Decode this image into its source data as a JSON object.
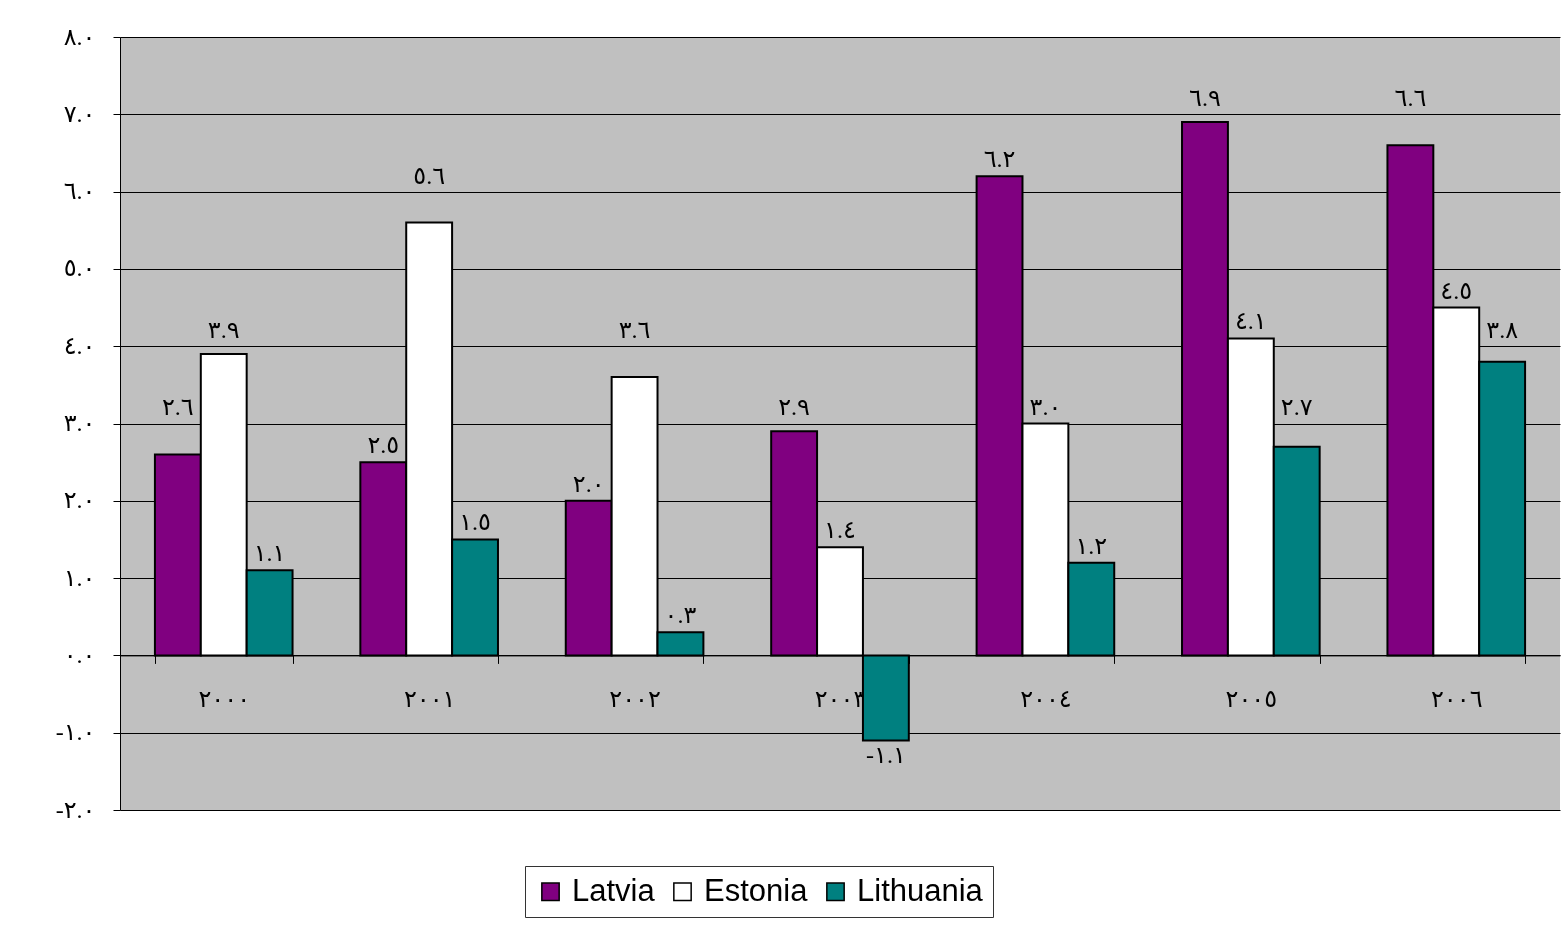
{
  "chart_data": {
    "type": "bar",
    "categories": [
      "٢٠٠٠",
      "٢٠٠١",
      "٢٠٠٢",
      "٢٠٠٣",
      "٢٠٠٤",
      "٢٠٠٥",
      "٢٠٠٦"
    ],
    "series": [
      {
        "name": "Latvia",
        "color": "#800080",
        "values": [
          2.6,
          2.5,
          2.0,
          2.9,
          6.2,
          6.9,
          6.6
        ],
        "value_labels": [
          "٢.٦",
          "٢.٥",
          "٢.٠",
          "٢.٩",
          "٦.٢",
          "٦.٩",
          "٦.٦"
        ]
      },
      {
        "name": "Estonia",
        "color": "#ffffff",
        "values": [
          3.9,
          5.6,
          3.6,
          1.4,
          3.0,
          4.1,
          4.5
        ],
        "value_labels": [
          "٣.٩",
          "٥.٦",
          "٣.٦",
          "١.٤",
          "٣.٠",
          "٤.١",
          "٤.٥"
        ]
      },
      {
        "name": "Lithuania",
        "color": "#008080",
        "values": [
          1.1,
          1.5,
          0.3,
          -1.1,
          1.2,
          2.7,
          3.8
        ],
        "value_labels": [
          "١.١",
          "١.٥",
          "٠.٣",
          "-١.١",
          "١.٢",
          "٢.٧",
          "٣.٨"
        ]
      }
    ],
    "ylim": [
      -2,
      8
    ],
    "yticks": [
      {
        "value": -2,
        "label": "-٢.٠"
      },
      {
        "value": -1,
        "label": "-١.٠"
      },
      {
        "value": 0,
        "label": "٠.٠"
      },
      {
        "value": 1,
        "label": "١.٠"
      },
      {
        "value": 2,
        "label": "٢.٠"
      },
      {
        "value": 3,
        "label": "٣.٠"
      },
      {
        "value": 4,
        "label": "٤.٠"
      },
      {
        "value": 5,
        "label": "٥.٠"
      },
      {
        "value": 6,
        "label": "٦.٠"
      },
      {
        "value": 7,
        "label": "٧.٠"
      },
      {
        "value": 8,
        "label": "٨.٠"
      }
    ],
    "grid": "y",
    "legend": "bottom"
  }
}
